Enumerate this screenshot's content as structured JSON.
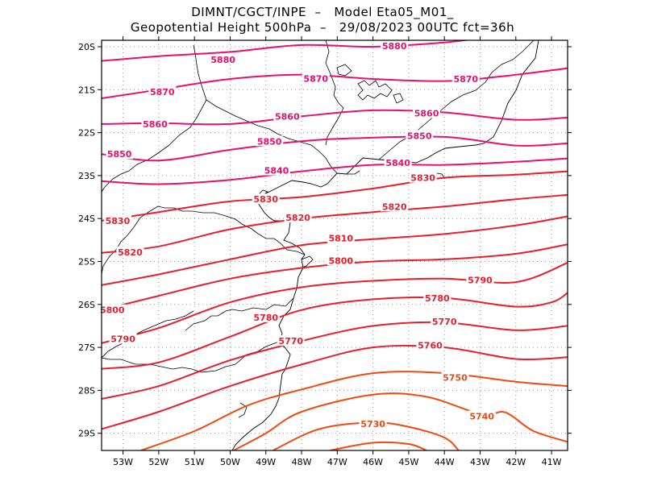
{
  "header": {
    "line1": "DIMNT/CGCT/INPE  –   Model Eta05_M01_",
    "line2": "Geopotential Height 500hPa  –   29/08/2023 00UTC fct=36h"
  },
  "map": {
    "lon_range": [
      -53.6,
      -40.55
    ],
    "lat_range": [
      -29.4,
      -19.85
    ],
    "lat_ticks": [
      {
        "value": -20,
        "label": "20S"
      },
      {
        "value": -21,
        "label": "21S"
      },
      {
        "value": -22,
        "label": "22S"
      },
      {
        "value": -23,
        "label": "23S"
      },
      {
        "value": -24,
        "label": "24S"
      },
      {
        "value": -25,
        "label": "25S"
      },
      {
        "value": -26,
        "label": "26S"
      },
      {
        "value": -27,
        "label": "27S"
      },
      {
        "value": -28,
        "label": "28S"
      },
      {
        "value": -29,
        "label": "29S"
      }
    ],
    "lon_ticks": [
      {
        "value": -53,
        "label": "53W"
      },
      {
        "value": -52,
        "label": "52W"
      },
      {
        "value": -51,
        "label": "51W"
      },
      {
        "value": -50,
        "label": "50W"
      },
      {
        "value": -49,
        "label": "49W"
      },
      {
        "value": -48,
        "label": "48W"
      },
      {
        "value": -47,
        "label": "47W"
      },
      {
        "value": -46,
        "label": "46W"
      },
      {
        "value": -45,
        "label": "45W"
      },
      {
        "value": -44,
        "label": "44W"
      },
      {
        "value": -43,
        "label": "43W"
      },
      {
        "value": -42,
        "label": "42W"
      },
      {
        "value": -41,
        "label": "41W"
      }
    ],
    "grid": true,
    "contour_colors": {
      "high": "#e8106b",
      "mid": "#e81e2e",
      "low": "#f04a10"
    },
    "contours": [
      {
        "value": "5880",
        "points": [
          [
            -53.6,
            -20.33
          ],
          [
            -52,
            -20.22
          ],
          [
            -50,
            -20.12
          ],
          [
            -48,
            -19.96
          ],
          [
            -46,
            -20
          ],
          [
            -44,
            -19.9
          ],
          [
            -43,
            -19.8
          ]
        ],
        "labels": [
          [
            -50.2,
            -20.3
          ],
          [
            -45.4,
            -19.98
          ]
        ]
      },
      {
        "value": "5870",
        "points": [
          [
            -53.6,
            -21.2
          ],
          [
            -52,
            -21.0
          ],
          [
            -50,
            -20.75
          ],
          [
            -48,
            -20.65
          ],
          [
            -46,
            -20.75
          ],
          [
            -44,
            -20.8
          ],
          [
            -42.5,
            -20.7
          ],
          [
            -41,
            -20.55
          ],
          [
            -40.55,
            -20.5
          ]
        ],
        "labels": [
          [
            -51.9,
            -21.05
          ],
          [
            -47.6,
            -20.74
          ],
          [
            -43.4,
            -20.75
          ]
        ]
      },
      {
        "value": "5860",
        "points": [
          [
            -53.6,
            -21.8
          ],
          [
            -52,
            -21.78
          ],
          [
            -50,
            -21.8
          ],
          [
            -48,
            -21.62
          ],
          [
            -46,
            -21.48
          ],
          [
            -44,
            -21.53
          ],
          [
            -42,
            -21.7
          ],
          [
            -40.55,
            -21.65
          ]
        ],
        "labels": [
          [
            -52.1,
            -21.8
          ],
          [
            -48.4,
            -21.62
          ],
          [
            -44.5,
            -21.55
          ]
        ]
      },
      {
        "value": "5850",
        "points": [
          [
            -53.6,
            -22.5
          ],
          [
            -52,
            -22.65
          ],
          [
            -50,
            -22.4
          ],
          [
            -48,
            -22.2
          ],
          [
            -46.5,
            -22.13
          ],
          [
            -44,
            -22.1
          ],
          [
            -42,
            -22.3
          ],
          [
            -40.55,
            -22.25
          ]
        ],
        "labels": [
          [
            -53.1,
            -22.5
          ],
          [
            -48.9,
            -22.2
          ],
          [
            -44.7,
            -22.07
          ]
        ]
      },
      {
        "value": "5840",
        "points": [
          [
            -53.6,
            -23.13
          ],
          [
            -52,
            -23.2
          ],
          [
            -50,
            -23.1
          ],
          [
            -48,
            -22.9
          ],
          [
            -46,
            -22.75
          ],
          [
            -44,
            -22.75
          ],
          [
            -42,
            -22.68
          ],
          [
            -40.55,
            -22.6
          ]
        ],
        "labels": [
          [
            -48.7,
            -22.88
          ],
          [
            -45.3,
            -22.7
          ]
        ]
      },
      {
        "value": "5830",
        "points": [
          [
            -53.6,
            -24.05
          ],
          [
            -52,
            -23.85
          ],
          [
            -50,
            -23.6
          ],
          [
            -48,
            -23.5
          ],
          [
            -46,
            -23.3
          ],
          [
            -44,
            -23.05
          ],
          [
            -42,
            -22.98
          ],
          [
            -40.55,
            -22.9
          ]
        ],
        "labels": [
          [
            -53.15,
            -24.05
          ],
          [
            -49.0,
            -23.55
          ],
          [
            -44.6,
            -23.05
          ]
        ]
      },
      {
        "value": "5820",
        "points": [
          [
            -53.6,
            -24.8
          ],
          [
            -52,
            -24.65
          ],
          [
            -50,
            -24.25
          ],
          [
            -48,
            -24.0
          ],
          [
            -46,
            -23.85
          ],
          [
            -44,
            -23.72
          ],
          [
            -42,
            -23.55
          ],
          [
            -40.55,
            -23.45
          ]
        ],
        "labels": [
          [
            -52.8,
            -24.78
          ],
          [
            -48.1,
            -23.98
          ],
          [
            -45.4,
            -23.72
          ]
        ]
      },
      {
        "value": "5810",
        "points": [
          [
            -53.6,
            -25.55
          ],
          [
            -52,
            -25.3
          ],
          [
            -50,
            -24.95
          ],
          [
            -48,
            -24.62
          ],
          [
            -46,
            -24.48
          ],
          [
            -44,
            -24.36
          ],
          [
            -42,
            -24.16
          ],
          [
            -40.55,
            -23.95
          ]
        ],
        "labels": [
          [
            -46.9,
            -24.46
          ]
        ]
      },
      {
        "value": "5800",
        "points": [
          [
            -53.6,
            -26.13
          ],
          [
            -52,
            -25.8
          ],
          [
            -50,
            -25.4
          ],
          [
            -48,
            -25.15
          ],
          [
            -46,
            -25.0
          ],
          [
            -44,
            -24.95
          ],
          [
            -42,
            -24.82
          ],
          [
            -40.55,
            -24.6
          ]
        ],
        "labels": [
          [
            -53.3,
            -26.13
          ],
          [
            -46.9,
            -24.98
          ]
        ]
      },
      {
        "value": "5790",
        "points": [
          [
            -53.6,
            -26.9
          ],
          [
            -52,
            -26.55
          ],
          [
            -50,
            -25.95
          ],
          [
            -48,
            -25.6
          ],
          [
            -46,
            -25.45
          ],
          [
            -44,
            -25.4
          ],
          [
            -42,
            -25.48
          ],
          [
            -40.55,
            -25.03
          ]
        ],
        "labels": [
          [
            -53.0,
            -26.8
          ],
          [
            -43.0,
            -25.43
          ]
        ]
      },
      {
        "value": "5780",
        "points": [
          [
            -53.6,
            -27.5
          ],
          [
            -52,
            -27.35
          ],
          [
            -50,
            -26.75
          ],
          [
            -48,
            -26.13
          ],
          [
            -46,
            -25.88
          ],
          [
            -44,
            -25.85
          ],
          [
            -42,
            -26.05
          ],
          [
            -41,
            -25.95
          ],
          [
            -40.55,
            -25.73
          ]
        ],
        "labels": [
          [
            -49.0,
            -26.3
          ],
          [
            -44.2,
            -25.85
          ]
        ]
      },
      {
        "value": "5770",
        "points": [
          [
            -53.6,
            -28.2
          ],
          [
            -52,
            -27.9
          ],
          [
            -50,
            -27.3
          ],
          [
            -48,
            -26.85
          ],
          [
            -46,
            -26.5
          ],
          [
            -44,
            -26.42
          ],
          [
            -42,
            -26.6
          ],
          [
            -40.55,
            -26.5
          ]
        ],
        "labels": [
          [
            -48.3,
            -26.85
          ],
          [
            -44.0,
            -26.4
          ]
        ]
      },
      {
        "value": "5760",
        "points": [
          [
            -53.6,
            -28.9
          ],
          [
            -52,
            -28.5
          ],
          [
            -50,
            -27.9
          ],
          [
            -48,
            -27.4
          ],
          [
            -46,
            -27.0
          ],
          [
            -44,
            -27.0
          ],
          [
            -42,
            -27.27
          ],
          [
            -40.55,
            -27.23
          ]
        ],
        "labels": [
          [
            -44.4,
            -26.95
          ]
        ]
      },
      {
        "value": "5750",
        "points": [
          [
            -52.5,
            -29.4
          ],
          [
            -51,
            -28.95
          ],
          [
            -49.5,
            -28.35
          ],
          [
            -48,
            -27.98
          ],
          [
            -46,
            -27.6
          ],
          [
            -44,
            -27.6
          ],
          [
            -42,
            -27.8
          ],
          [
            -40.55,
            -27.9
          ]
        ],
        "labels": [
          [
            -43.7,
            -27.7
          ]
        ]
      },
      {
        "value": "5740",
        "points": [
          [
            -49.9,
            -29.4
          ],
          [
            -49,
            -29.0
          ],
          [
            -48,
            -28.5
          ],
          [
            -46,
            -28.1
          ],
          [
            -44.5,
            -28.15
          ],
          [
            -43,
            -28.55
          ],
          [
            -42.4,
            -28.5
          ],
          [
            -42.1,
            -28.6
          ],
          [
            -41.5,
            -28.95
          ],
          [
            -40.55,
            -29.2
          ]
        ],
        "labels": [
          [
            -42.95,
            -28.6
          ]
        ]
      },
      {
        "value": "5730",
        "points": [
          [
            -48.8,
            -29.4
          ],
          [
            -47.5,
            -28.9
          ],
          [
            -46,
            -28.75
          ],
          [
            -45,
            -28.85
          ],
          [
            -44,
            -29.1
          ],
          [
            -43.6,
            -29.4
          ]
        ],
        "labels": [
          [
            -46.0,
            -28.78
          ]
        ]
      },
      {
        "value": "",
        "points": [
          [
            -47.2,
            -29.4
          ],
          [
            -46,
            -29.22
          ],
          [
            -45,
            -29.25
          ],
          [
            -44.5,
            -29.4
          ]
        ],
        "labels": []
      }
    ]
  }
}
